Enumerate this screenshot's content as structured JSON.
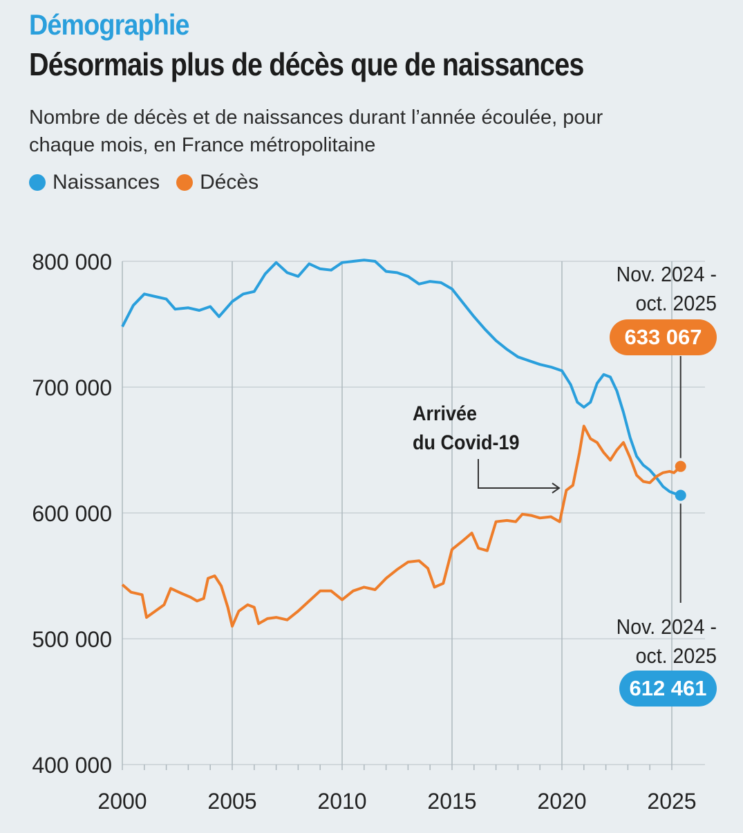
{
  "header": {
    "kicker": "Démographie",
    "title": "Désormais plus de décès que de naissances",
    "subtitle": "Nombre de décès et de naissances durant l’année écoulée, pour chaque mois, en France métropolitaine"
  },
  "legend": [
    {
      "label": "Naissances",
      "color": "#2a9fdc"
    },
    {
      "label": "Décès",
      "color": "#ee7d2a"
    }
  ],
  "annotation": {
    "line1": "Arrivée",
    "line2": "du Covid-19",
    "x": 2020.0
  },
  "callouts": {
    "deaths": {
      "period_line1": "Nov. 2024 -",
      "period_line2": "oct. 2025",
      "value": "633 067",
      "color": "#ee7d2a"
    },
    "births": {
      "period_line1": "Nov. 2024 -",
      "period_line2": "oct. 2025",
      "value": "612 461",
      "color": "#2a9fdc"
    }
  },
  "chart_data": {
    "type": "line",
    "ylim": [
      400000,
      800000
    ],
    "y_ticks": [
      "800 000",
      "700 000",
      "600 000",
      "500 000",
      "400 000"
    ],
    "y_tick_values": [
      800000,
      700000,
      600000,
      500000,
      400000
    ],
    "xlim": [
      2000,
      2025
    ],
    "x_ticks": [
      "2000",
      "2005",
      "2010",
      "2015",
      "2020",
      "2025"
    ],
    "x_tick_values": [
      2000,
      2005,
      2010,
      2015,
      2020,
      2025
    ],
    "grid": true,
    "series": [
      {
        "name": "Naissances",
        "color": "#2a9fdc",
        "points": [
          [
            2000.0,
            748000
          ],
          [
            2000.5,
            765000
          ],
          [
            2001.0,
            774000
          ],
          [
            2001.5,
            772000
          ],
          [
            2002.0,
            770000
          ],
          [
            2002.4,
            762000
          ],
          [
            2003.0,
            763000
          ],
          [
            2003.5,
            761000
          ],
          [
            2004.0,
            764000
          ],
          [
            2004.4,
            756000
          ],
          [
            2005.0,
            768000
          ],
          [
            2005.5,
            774000
          ],
          [
            2006.0,
            776000
          ],
          [
            2006.5,
            790000
          ],
          [
            2007.0,
            799000
          ],
          [
            2007.5,
            791000
          ],
          [
            2008.0,
            788000
          ],
          [
            2008.5,
            798000
          ],
          [
            2009.0,
            794000
          ],
          [
            2009.5,
            793000
          ],
          [
            2010.0,
            799000
          ],
          [
            2010.5,
            800000
          ],
          [
            2011.0,
            801000
          ],
          [
            2011.5,
            800000
          ],
          [
            2012.0,
            792000
          ],
          [
            2012.5,
            791000
          ],
          [
            2013.0,
            788000
          ],
          [
            2013.5,
            782000
          ],
          [
            2014.0,
            784000
          ],
          [
            2014.5,
            783000
          ],
          [
            2015.0,
            778000
          ],
          [
            2015.5,
            767000
          ],
          [
            2016.0,
            756000
          ],
          [
            2016.5,
            746000
          ],
          [
            2017.0,
            737000
          ],
          [
            2017.5,
            730000
          ],
          [
            2018.0,
            724000
          ],
          [
            2018.5,
            721000
          ],
          [
            2019.0,
            718000
          ],
          [
            2019.5,
            716000
          ],
          [
            2020.0,
            713000
          ],
          [
            2020.4,
            702000
          ],
          [
            2020.7,
            688000
          ],
          [
            2021.0,
            684000
          ],
          [
            2021.3,
            688000
          ],
          [
            2021.6,
            703000
          ],
          [
            2021.9,
            710000
          ],
          [
            2022.2,
            708000
          ],
          [
            2022.5,
            697000
          ],
          [
            2022.8,
            680000
          ],
          [
            2023.1,
            660000
          ],
          [
            2023.4,
            645000
          ],
          [
            2023.7,
            638000
          ],
          [
            2024.0,
            634000
          ],
          [
            2024.3,
            628000
          ],
          [
            2024.6,
            621000
          ],
          [
            2024.9,
            617000
          ],
          [
            2025.2,
            615000
          ],
          [
            2025.4,
            614000
          ]
        ]
      },
      {
        "name": "Décès",
        "color": "#ee7d2a",
        "points": [
          [
            2000.0,
            543000
          ],
          [
            2000.4,
            537000
          ],
          [
            2000.9,
            535000
          ],
          [
            2001.1,
            517000
          ],
          [
            2001.5,
            522000
          ],
          [
            2001.9,
            527000
          ],
          [
            2002.2,
            540000
          ],
          [
            2002.7,
            536000
          ],
          [
            2003.1,
            533000
          ],
          [
            2003.4,
            530000
          ],
          [
            2003.7,
            532000
          ],
          [
            2003.9,
            548000
          ],
          [
            2004.2,
            550000
          ],
          [
            2004.5,
            542000
          ],
          [
            2004.8,
            525000
          ],
          [
            2005.0,
            510000
          ],
          [
            2005.3,
            522000
          ],
          [
            2005.7,
            527000
          ],
          [
            2006.0,
            525000
          ],
          [
            2006.2,
            512000
          ],
          [
            2006.6,
            516000
          ],
          [
            2007.0,
            517000
          ],
          [
            2007.5,
            515000
          ],
          [
            2008.0,
            522000
          ],
          [
            2008.5,
            530000
          ],
          [
            2009.0,
            538000
          ],
          [
            2009.5,
            538000
          ],
          [
            2010.0,
            531000
          ],
          [
            2010.5,
            538000
          ],
          [
            2011.0,
            541000
          ],
          [
            2011.5,
            539000
          ],
          [
            2012.0,
            548000
          ],
          [
            2012.5,
            555000
          ],
          [
            2013.0,
            561000
          ],
          [
            2013.5,
            562000
          ],
          [
            2013.9,
            556000
          ],
          [
            2014.2,
            541000
          ],
          [
            2014.6,
            544000
          ],
          [
            2015.0,
            571000
          ],
          [
            2015.5,
            578000
          ],
          [
            2015.9,
            584000
          ],
          [
            2016.2,
            572000
          ],
          [
            2016.6,
            570000
          ],
          [
            2017.0,
            593000
          ],
          [
            2017.5,
            594000
          ],
          [
            2017.9,
            593000
          ],
          [
            2018.2,
            599000
          ],
          [
            2018.6,
            598000
          ],
          [
            2019.0,
            596000
          ],
          [
            2019.5,
            597000
          ],
          [
            2019.9,
            593000
          ],
          [
            2020.2,
            618000
          ],
          [
            2020.5,
            622000
          ],
          [
            2020.8,
            648000
          ],
          [
            2021.0,
            669000
          ],
          [
            2021.3,
            659000
          ],
          [
            2021.6,
            656000
          ],
          [
            2021.9,
            648000
          ],
          [
            2022.2,
            642000
          ],
          [
            2022.5,
            650000
          ],
          [
            2022.8,
            656000
          ],
          [
            2023.1,
            644000
          ],
          [
            2023.4,
            630000
          ],
          [
            2023.7,
            625000
          ],
          [
            2024.0,
            624000
          ],
          [
            2024.3,
            629000
          ],
          [
            2024.6,
            632000
          ],
          [
            2024.9,
            633000
          ],
          [
            2025.1,
            632000
          ],
          [
            2025.4,
            637000
          ]
        ]
      }
    ]
  }
}
